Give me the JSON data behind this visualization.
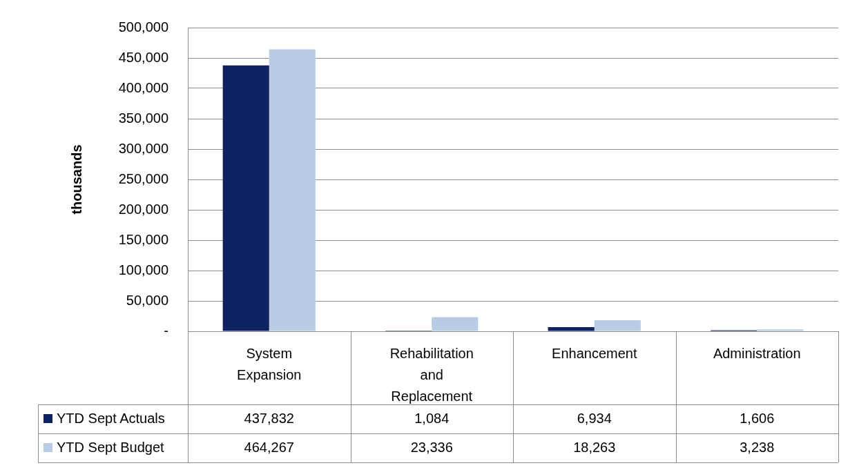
{
  "chart_data": {
    "type": "bar",
    "ylabel": "thousands",
    "categories": [
      "System Expansion",
      "Rehabilitation and Replacement",
      "Enhancement",
      "Administration"
    ],
    "series": [
      {
        "name": "YTD Sept Actuals",
        "color": "#0e2160",
        "values": [
          437832,
          1084,
          6934,
          1606
        ],
        "value_labels": [
          "437,832",
          "1,084",
          "6,934",
          "1,606"
        ]
      },
      {
        "name": "YTD Sept Budget",
        "color": "#b8cce4",
        "values": [
          464267,
          23336,
          18263,
          3238
        ],
        "value_labels": [
          "464,267",
          "23,336",
          "18,263",
          "3,238"
        ]
      }
    ],
    "ylim": [
      0,
      500000
    ],
    "yticks": [
      {
        "value": 0,
        "label": "-"
      },
      {
        "value": 50000,
        "label": "50,000"
      },
      {
        "value": 100000,
        "label": "100,000"
      },
      {
        "value": 150000,
        "label": "150,000"
      },
      {
        "value": 200000,
        "label": "200,000"
      },
      {
        "value": 250000,
        "label": "250,000"
      },
      {
        "value": 300000,
        "label": "300,000"
      },
      {
        "value": 350000,
        "label": "350,000"
      },
      {
        "value": 400000,
        "label": "400,000"
      },
      {
        "value": 450000,
        "label": "450,000"
      },
      {
        "value": 500000,
        "label": "500,000"
      }
    ],
    "grid": "y",
    "legend": "bottom"
  }
}
